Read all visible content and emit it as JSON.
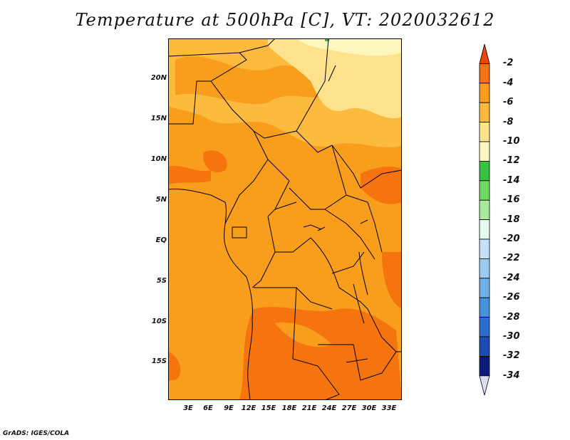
{
  "title": "Temperature at 500hPa [C], VT: 2020032612",
  "footer": "GrADS: IGES/COLA",
  "lat_ticks": [
    "20N",
    "15N",
    "10N",
    "5N",
    "EQ",
    "5S",
    "10S",
    "15S"
  ],
  "lon_ticks": [
    "3E",
    "6E",
    "9E",
    "12E",
    "15E",
    "18E",
    "21E",
    "24E",
    "27E",
    "30E",
    "33E"
  ],
  "colorbar": {
    "labels": [
      "-2",
      "-4",
      "-6",
      "-8",
      "-10",
      "-12",
      "-14",
      "-16",
      "-18",
      "-20",
      "-22",
      "-24",
      "-26",
      "-28",
      "-30",
      "-32",
      "-34"
    ],
    "colors": [
      "#e8470a",
      "#f57410",
      "#f99d1c",
      "#fcba3e",
      "#fee38c",
      "#fff6be",
      "#36c23e",
      "#6fd964",
      "#a7ea9c",
      "#e6fbf0",
      "#c4e2f8",
      "#9ccbef",
      "#6eb0e6",
      "#4791dd",
      "#2a6fd0",
      "#1b4db5",
      "#0d1d7a",
      "#dcdcf2"
    ]
  },
  "chart_data": {
    "type": "heatmap",
    "title": "Temperature at 500hPa [C], VT: 2020032612",
    "variable": "Temperature at 500hPa",
    "units": "C",
    "valid_time": "2020032612",
    "lon_range": [
      0,
      34
    ],
    "lat_range": [
      -20,
      24
    ],
    "approximate_values": {
      "dominant_range": [
        -6,
        -4
      ],
      "northeast_range": [
        -10,
        -6
      ],
      "southern_patches": [
        -4,
        -2
      ],
      "max_shown": -2
    }
  }
}
